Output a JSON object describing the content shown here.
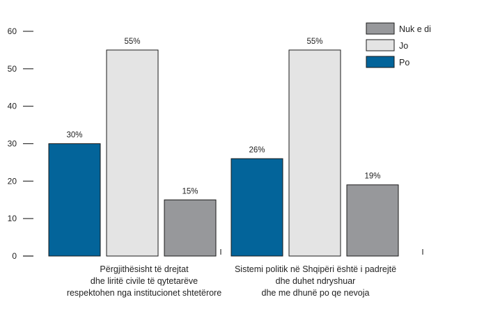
{
  "chart_data": {
    "type": "bar",
    "categories": [
      [
        "Përgjithësisht të drejtat",
        "dhe liritë civile të qytetarëve",
        "respektohen nga institucionet shtetërore"
      ],
      [
        "Sistemi politik në Shqipëri është i padrejtë",
        "dhe duhet ndryshuar",
        "dhe me dhunë po qe nevoja"
      ]
    ],
    "series": [
      {
        "name": "Po",
        "color": "#03649a",
        "values": [
          30,
          26
        ],
        "labels": [
          "30%",
          "26%"
        ]
      },
      {
        "name": "Jo",
        "color": "#e4e4e4",
        "values": [
          55,
          55
        ],
        "labels": [
          "55%",
          "55%"
        ]
      },
      {
        "name": "Nuk e di",
        "color": "#97989b",
        "values": [
          15,
          19
        ],
        "labels": [
          "15%",
          "19%"
        ]
      }
    ],
    "legend_order": [
      "Nuk e di",
      "Jo",
      "Po"
    ],
    "legend_position": "top-right",
    "ylim": [
      0,
      60
    ],
    "yticks": [
      "0",
      "10",
      "20",
      "30",
      "40",
      "50",
      "60"
    ],
    "grid": false
  }
}
